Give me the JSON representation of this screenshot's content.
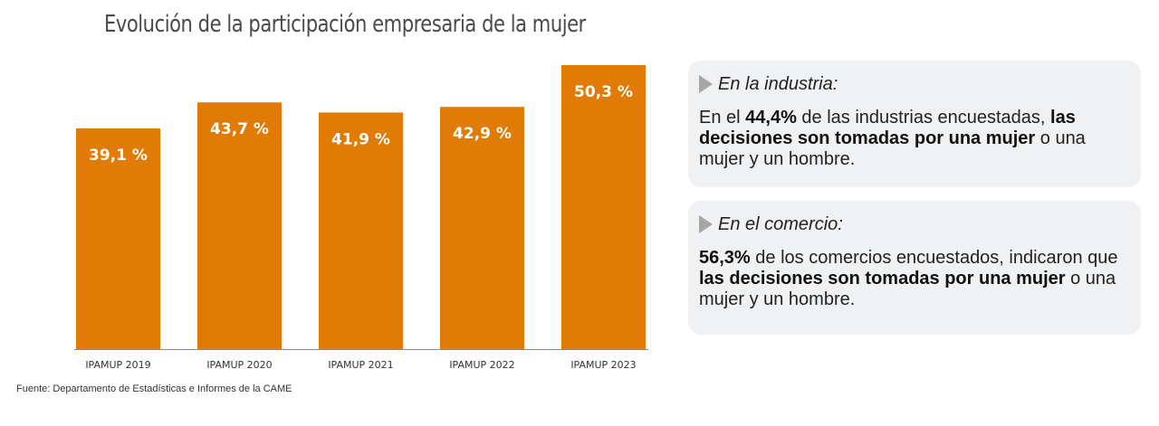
{
  "colors": {
    "bar": "#e07b05",
    "axis": "#8a8a8a",
    "card_bg": "#eff1f3"
  },
  "chart_data": {
    "type": "bar",
    "title": "Evolución de la participación empresaria de la mujer",
    "categories": [
      "IPAMUP 2019",
      "IPAMUP 2020",
      "IPAMUP 2021",
      "IPAMUP 2022",
      "IPAMUP 2023"
    ],
    "values": [
      39.1,
      43.7,
      41.9,
      42.9,
      50.3
    ],
    "data_labels": [
      "39,1 %",
      "43,7 %",
      "41,9 %",
      "42,9 %",
      "50,3 %"
    ],
    "ylim": [
      0,
      50.3
    ],
    "xlabel": "",
    "ylabel": "",
    "grid": false
  },
  "source": "Fuente: Departamento de Estadísticas e Informes de la CAME",
  "industry": {
    "heading": "En la industria:",
    "t1": "En el ",
    "b1": "44,4%",
    "t2": " de las industrias encuestadas, ",
    "b2": "las decisiones son tomadas por una mujer",
    "t3": " o una mujer y un hombre."
  },
  "commerce": {
    "heading": "En el comercio:",
    "b1": "56,3%",
    "t1": " de los comercios encuestados, indicaron que ",
    "b2": "las decisiones son tomadas por una mujer",
    "t2": " o una mujer y un hombre."
  }
}
